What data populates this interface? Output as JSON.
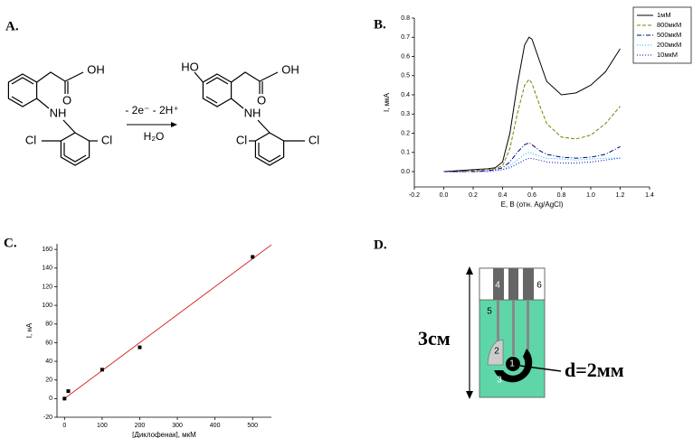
{
  "panel_labels": [
    "A.",
    "B.",
    "C.",
    "D."
  ],
  "reaction": {
    "reactant": {
      "labels": [
        "OH",
        "O",
        "NH",
        "Cl",
        "Cl"
      ]
    },
    "conditions": {
      "above": "- 2e⁻   - 2H⁺",
      "below": "H₂O"
    },
    "product": {
      "labels": [
        "HO",
        "OH",
        "O",
        "NH",
        "Cl",
        "Cl"
      ]
    }
  },
  "chart_data": [
    {
      "type": "line",
      "x_label": "E, В (отн. Ag/AgCl)",
      "y_label": "I, мкА",
      "x": [
        0,
        0.1,
        0.2,
        0.3,
        0.35,
        0.4,
        0.45,
        0.5,
        0.55,
        0.58,
        0.6,
        0.65,
        0.7,
        0.8,
        0.9,
        1.0,
        1.1,
        1.2
      ],
      "series": [
        {
          "name": "1мМ",
          "color": "#000000",
          "style": "solid",
          "values": [
            0,
            0.005,
            0.01,
            0.015,
            0.02,
            0.05,
            0.2,
            0.45,
            0.66,
            0.7,
            0.69,
            0.58,
            0.47,
            0.4,
            0.41,
            0.45,
            0.52,
            0.64
          ]
        },
        {
          "name": "800мкМ",
          "color": "#808000",
          "style": "dash",
          "values": [
            0,
            0,
            0.005,
            0.01,
            0.015,
            0.03,
            0.12,
            0.3,
            0.45,
            0.48,
            0.46,
            0.35,
            0.25,
            0.18,
            0.17,
            0.19,
            0.25,
            0.34
          ]
        },
        {
          "name": "500мкМ",
          "color": "#000080",
          "style": "dashdot",
          "values": [
            0,
            0,
            0,
            0.005,
            0.01,
            0.02,
            0.05,
            0.1,
            0.14,
            0.15,
            0.14,
            0.11,
            0.09,
            0.075,
            0.07,
            0.075,
            0.09,
            0.13
          ]
        },
        {
          "name": "200мкМ",
          "color": "#00bfff",
          "style": "dot",
          "values": [
            0,
            0,
            0,
            0,
            0.005,
            0.01,
            0.03,
            0.06,
            0.09,
            0.1,
            0.095,
            0.08,
            0.07,
            0.065,
            0.06,
            0.065,
            0.07,
            0.07
          ]
        },
        {
          "name": "10мкМ",
          "color": "#0000cd",
          "style": "dot",
          "values": [
            0,
            0,
            0,
            0,
            0.005,
            0.01,
            0.02,
            0.04,
            0.06,
            0.07,
            0.068,
            0.06,
            0.05,
            0.045,
            0.045,
            0.05,
            0.06,
            0.07
          ]
        }
      ],
      "xlim": [
        -0.2,
        1.4
      ],
      "ylim": [
        -0.08,
        0.8
      ],
      "xticks": [
        -0.2,
        {
          "value": 0,
          "label": "0.0"
        },
        0.2,
        0.4,
        0.6,
        0.8,
        {
          "value": 1,
          "label": "1.0"
        },
        1.2,
        1.4
      ],
      "yticks": [
        {
          "value": 0,
          "label": "0.0"
        },
        0.1,
        0.2,
        0.3,
        0.4,
        0.5,
        0.6,
        0.7,
        0.8
      ],
      "legend": "upper right"
    },
    {
      "type": "scatter",
      "x_label": "[Диклофенак], мкМ",
      "y_label": "I, нА",
      "x": [
        0,
        10,
        100,
        200,
        500
      ],
      "values": [
        0,
        8,
        31,
        55,
        152
      ],
      "color": "#000000",
      "fit": {
        "x": [
          0,
          550
        ],
        "values": [
          0,
          165
        ],
        "color": "#cc0000"
      },
      "xlim": [
        -20,
        550
      ],
      "ylim": [
        -20,
        166
      ],
      "xticks": [
        0,
        100,
        200,
        300,
        400,
        500
      ],
      "yticks": [
        -20,
        0,
        20,
        40,
        60,
        80,
        100,
        120,
        140,
        160
      ]
    }
  ],
  "device": {
    "size": "3см",
    "diameter": "d=2мм",
    "parts": [
      "1",
      "2",
      "3",
      "4",
      "5",
      "6"
    ]
  }
}
